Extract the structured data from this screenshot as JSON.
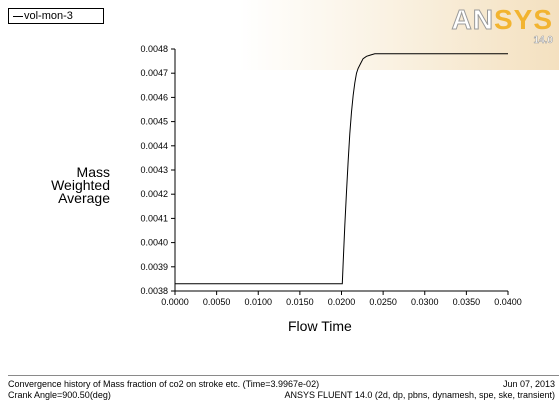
{
  "legend": {
    "monitor_name": "vol-mon-3"
  },
  "brand": {
    "logo_text": "ANSYS",
    "version": "14.0",
    "accent_color": "#f2b430"
  },
  "chart_data": {
    "type": "line",
    "xlabel": "Flow Time",
    "ylabel_lines": [
      "Mass",
      "Weighted",
      "Average"
    ],
    "xlim": [
      0.0,
      0.04
    ],
    "ylim": [
      0.0038,
      0.0048
    ],
    "x_ticks": [
      "0.0000",
      "0.0050",
      "0.0100",
      "0.0150",
      "0.0200",
      "0.0250",
      "0.0300",
      "0.0350",
      "0.0400"
    ],
    "y_ticks": [
      "0.0038",
      "0.0039",
      "0.0040",
      "0.0041",
      "0.0042",
      "0.0043",
      "0.0044",
      "0.0045",
      "0.0046",
      "0.0047",
      "0.0048"
    ],
    "grid": false,
    "series": [
      {
        "name": "vol-mon-3",
        "color": "#000000",
        "x": [
          0.0,
          0.005,
          0.01,
          0.015,
          0.0201,
          0.0202,
          0.0204,
          0.0206,
          0.0208,
          0.021,
          0.0212,
          0.0214,
          0.0216,
          0.0218,
          0.022,
          0.0223,
          0.0226,
          0.023,
          0.0235,
          0.024,
          0.025,
          0.027,
          0.03,
          0.035,
          0.04
        ],
        "y": [
          0.00383,
          0.00383,
          0.00383,
          0.00383,
          0.00383,
          0.00392,
          0.00407,
          0.00421,
          0.00434,
          0.00445,
          0.00454,
          0.00461,
          0.00466,
          0.0047,
          0.00472,
          0.00474,
          0.00476,
          0.00477,
          0.004775,
          0.00478,
          0.00478,
          0.00478,
          0.00478,
          0.00478,
          0.00478
        ]
      }
    ]
  },
  "footer": {
    "description": "Convergence history of Mass fraction of co2 on stroke etc.  (Time=3.9967e-02)",
    "date": "Jun 07, 2013",
    "crank_angle": "Crank Angle=900.50(deg)",
    "solver_info": "ANSYS FLUENT 14.0 (2d, dp, pbns, dynamesh, spe, ske, transient)"
  }
}
